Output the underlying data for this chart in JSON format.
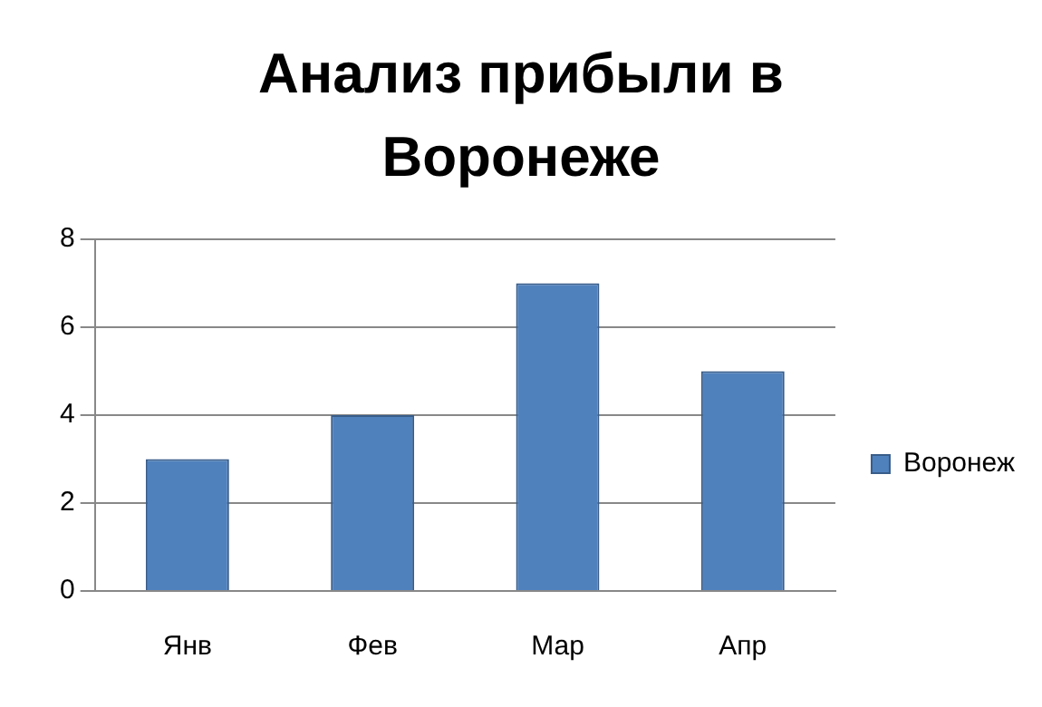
{
  "chart_data": {
    "type": "bar",
    "title": "Анализ прибыли в Воронеже",
    "categories": [
      "Янв",
      "Фев",
      "Мар",
      "Апр"
    ],
    "series": [
      {
        "name": "Воронеж",
        "color": "#4f81bd",
        "values": [
          3,
          4,
          7,
          5
        ]
      }
    ],
    "ylim": [
      0,
      8
    ],
    "yticks": [
      0,
      2,
      4,
      6,
      8
    ],
    "grid": "y",
    "legend": "right"
  }
}
